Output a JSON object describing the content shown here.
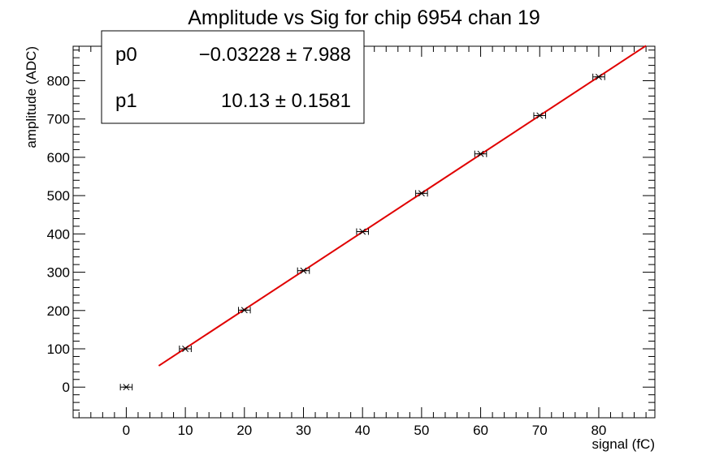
{
  "chart_data": {
    "type": "scatter",
    "title": "Amplitude vs Sig for chip 6954 chan 19",
    "xlabel": "signal (fC)",
    "ylabel": "amplitude (ADC)",
    "xlim": [
      -9,
      89.5
    ],
    "ylim": [
      -80,
      890
    ],
    "x_ticks": [
      0,
      10,
      20,
      30,
      40,
      50,
      60,
      70,
      80
    ],
    "y_ticks": [
      0,
      100,
      200,
      300,
      400,
      500,
      600,
      700,
      800
    ],
    "grid": false,
    "series": [
      {
        "marker": "star",
        "color": "#000000",
        "x": [
          0,
          10,
          20,
          30,
          40,
          50,
          60,
          70,
          80
        ],
        "y": [
          0,
          100,
          201,
          304,
          406,
          506,
          609,
          709,
          810
        ],
        "xerr": [
          1,
          1,
          1,
          1,
          1,
          1,
          1,
          1,
          1
        ]
      }
    ],
    "fit": {
      "color": "#e00000",
      "x_range": [
        5.5,
        88
      ],
      "p0": -0.03228,
      "p1": 10.13
    },
    "stats_box": {
      "position": "top-left",
      "rows": [
        {
          "name": "p0",
          "value": "−0.03228 ± 7.988"
        },
        {
          "name": "p1",
          "value": "10.13 ± 0.1581"
        }
      ]
    }
  }
}
